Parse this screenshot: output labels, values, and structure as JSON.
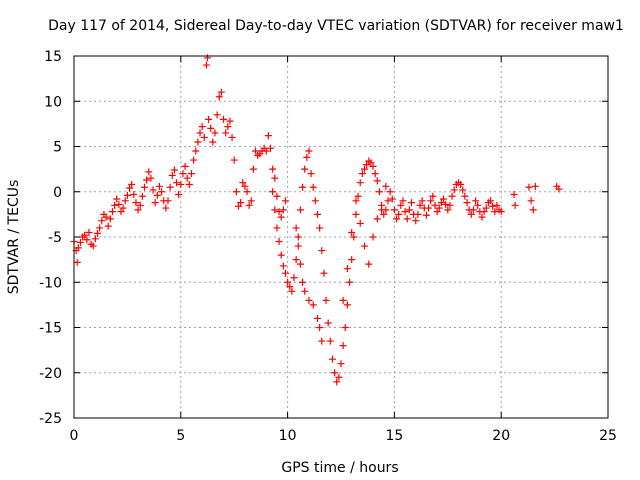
{
  "chart_data": {
    "type": "scatter",
    "title": "Day 117 of 2014, Sidereal Day-to-day VTEC variation (SDTVAR) for receiver maw1",
    "xlabel": "GPS time / hours",
    "ylabel": "SDTVAR / TECUs",
    "xlim": [
      0,
      25
    ],
    "ylim": [
      -25,
      15
    ],
    "xticks": [
      0,
      5,
      10,
      15,
      20,
      25
    ],
    "yticks": [
      -25,
      -20,
      -15,
      -10,
      -5,
      0,
      5,
      10,
      15
    ],
    "grid": true,
    "marker": "+",
    "series": [
      {
        "name": "SDTVAR",
        "color": "#ff0000",
        "points": [
          [
            0.0,
            -5.5
          ],
          [
            0.1,
            -6.5
          ],
          [
            0.15,
            -7.8
          ],
          [
            0.2,
            -6.2
          ],
          [
            0.3,
            -5.6
          ],
          [
            0.4,
            -5.0
          ],
          [
            0.5,
            -4.8
          ],
          [
            0.6,
            -5.3
          ],
          [
            0.7,
            -4.5
          ],
          [
            0.8,
            -5.8
          ],
          [
            0.9,
            -6.0
          ],
          [
            1.0,
            -5.2
          ],
          [
            1.1,
            -4.6
          ],
          [
            1.2,
            -4.0
          ],
          [
            1.3,
            -3.2
          ],
          [
            1.4,
            -2.5
          ],
          [
            1.5,
            -2.8
          ],
          [
            1.6,
            -3.8
          ],
          [
            1.7,
            -3.0
          ],
          [
            1.8,
            -2.2
          ],
          [
            1.9,
            -1.5
          ],
          [
            2.0,
            -0.8
          ],
          [
            2.1,
            -1.4
          ],
          [
            2.2,
            -2.2
          ],
          [
            2.3,
            -1.8
          ],
          [
            2.4,
            -1.0
          ],
          [
            2.5,
            -0.4
          ],
          [
            2.6,
            0.4
          ],
          [
            2.7,
            0.8
          ],
          [
            2.8,
            -0.3
          ],
          [
            2.9,
            -1.2
          ],
          [
            3.0,
            -2.0
          ],
          [
            3.1,
            -1.5
          ],
          [
            3.2,
            -0.5
          ],
          [
            3.3,
            0.5
          ],
          [
            3.4,
            1.3
          ],
          [
            3.5,
            2.2
          ],
          [
            3.6,
            1.5
          ],
          [
            3.7,
            0.2
          ],
          [
            3.8,
            -1.2
          ],
          [
            3.9,
            -0.4
          ],
          [
            4.0,
            0.6
          ],
          [
            4.1,
            0.0
          ],
          [
            4.2,
            -1.0
          ],
          [
            4.3,
            -1.8
          ],
          [
            4.4,
            -1.0
          ],
          [
            4.5,
            0.5
          ],
          [
            4.6,
            1.8
          ],
          [
            4.7,
            2.4
          ],
          [
            4.8,
            1.0
          ],
          [
            4.9,
            -0.3
          ],
          [
            5.0,
            0.8
          ],
          [
            5.1,
            2.0
          ],
          [
            5.2,
            2.8
          ],
          [
            5.3,
            1.5
          ],
          [
            5.4,
            0.8
          ],
          [
            5.5,
            2.0
          ],
          [
            5.6,
            3.5
          ],
          [
            5.7,
            4.5
          ],
          [
            5.8,
            5.5
          ],
          [
            5.9,
            6.5
          ],
          [
            6.0,
            7.2
          ],
          [
            6.1,
            6.0
          ],
          [
            6.2,
            14.0
          ],
          [
            6.25,
            14.8
          ],
          [
            6.3,
            8.0
          ],
          [
            6.4,
            7.0
          ],
          [
            6.5,
            5.5
          ],
          [
            6.6,
            6.5
          ],
          [
            6.7,
            8.5
          ],
          [
            6.8,
            10.5
          ],
          [
            6.9,
            11.0
          ],
          [
            7.0,
            8.0
          ],
          [
            7.1,
            6.5
          ],
          [
            7.2,
            7.2
          ],
          [
            7.3,
            7.8
          ],
          [
            7.4,
            6.0
          ],
          [
            7.5,
            3.5
          ],
          [
            7.6,
            0.0
          ],
          [
            7.7,
            -1.6
          ],
          [
            7.8,
            -1.2
          ],
          [
            7.9,
            1.0
          ],
          [
            8.0,
            0.6
          ],
          [
            8.1,
            0.0
          ],
          [
            8.2,
            -1.5
          ],
          [
            8.3,
            -1.0
          ],
          [
            8.4,
            2.5
          ],
          [
            8.5,
            4.5
          ],
          [
            8.6,
            4.0
          ],
          [
            8.7,
            4.2
          ],
          [
            8.8,
            4.5
          ],
          [
            8.9,
            4.8
          ],
          [
            9.0,
            4.5
          ],
          [
            9.1,
            6.2
          ],
          [
            9.2,
            4.8
          ],
          [
            9.3,
            0.0
          ],
          [
            9.4,
            -2.0
          ],
          [
            9.5,
            -4.0
          ],
          [
            9.6,
            -5.5
          ],
          [
            9.7,
            -7.0
          ],
          [
            9.8,
            -8.2
          ],
          [
            9.9,
            -9.0
          ],
          [
            10.0,
            -10.0
          ],
          [
            10.1,
            -10.5
          ],
          [
            10.2,
            -11.0
          ],
          [
            10.3,
            -9.5
          ],
          [
            10.4,
            -7.5
          ],
          [
            10.5,
            -5.0
          ],
          [
            10.6,
            -2.0
          ],
          [
            10.7,
            0.5
          ],
          [
            10.8,
            2.5
          ],
          [
            10.9,
            3.8
          ],
          [
            11.0,
            4.5
          ],
          [
            11.1,
            2.0
          ],
          [
            11.2,
            0.5
          ],
          [
            11.3,
            -1.0
          ],
          [
            11.4,
            -2.5
          ],
          [
            11.5,
            -4.0
          ],
          [
            11.6,
            -6.5
          ],
          [
            11.7,
            -9.0
          ],
          [
            11.8,
            -12.0
          ],
          [
            11.9,
            -14.5
          ],
          [
            12.0,
            -16.5
          ],
          [
            12.1,
            -18.5
          ],
          [
            12.2,
            -20.0
          ],
          [
            12.3,
            -21.0
          ],
          [
            12.4,
            -20.5
          ],
          [
            12.5,
            -19.0
          ],
          [
            12.6,
            -17.0
          ],
          [
            12.7,
            -15.0
          ],
          [
            12.8,
            -12.5
          ],
          [
            12.9,
            -10.0
          ],
          [
            13.0,
            -7.5
          ],
          [
            13.1,
            -5.0
          ],
          [
            13.2,
            -2.5
          ],
          [
            13.3,
            -0.5
          ],
          [
            13.4,
            1.0
          ],
          [
            13.5,
            2.0
          ],
          [
            13.6,
            2.5
          ],
          [
            13.7,
            3.0
          ],
          [
            13.8,
            3.4
          ],
          [
            13.9,
            3.2
          ],
          [
            14.0,
            2.8
          ],
          [
            14.1,
            2.0
          ],
          [
            14.2,
            1.2
          ],
          [
            14.3,
            0.0
          ],
          [
            14.4,
            -1.5
          ],
          [
            14.5,
            -2.5
          ],
          [
            14.6,
            -2.0
          ],
          [
            14.7,
            -1.0
          ],
          [
            14.8,
            0.0
          ],
          [
            14.9,
            -0.8
          ],
          [
            15.0,
            -2.0
          ],
          [
            15.1,
            -3.0
          ],
          [
            15.2,
            -2.5
          ],
          [
            15.3,
            -1.5
          ],
          [
            15.4,
            -1.0
          ],
          [
            15.5,
            -2.2
          ],
          [
            15.6,
            -3.0
          ],
          [
            15.7,
            -2.0
          ],
          [
            15.8,
            -1.2
          ],
          [
            15.9,
            -2.5
          ],
          [
            16.0,
            -3.2
          ],
          [
            16.1,
            -2.5
          ],
          [
            16.2,
            -1.5
          ],
          [
            16.3,
            -1.0
          ],
          [
            16.4,
            -1.8
          ],
          [
            16.5,
            -2.6
          ],
          [
            16.6,
            -1.8
          ],
          [
            16.7,
            -1.0
          ],
          [
            16.8,
            -0.5
          ],
          [
            16.9,
            -1.5
          ],
          [
            17.0,
            -2.2
          ],
          [
            17.1,
            -1.8
          ],
          [
            17.2,
            -1.2
          ],
          [
            17.3,
            -0.8
          ],
          [
            17.4,
            -1.4
          ],
          [
            17.5,
            -2.0
          ],
          [
            17.6,
            -1.5
          ],
          [
            17.7,
            -0.5
          ],
          [
            17.8,
            0.2
          ],
          [
            17.9,
            0.8
          ],
          [
            18.0,
            1.0
          ],
          [
            18.1,
            0.8
          ],
          [
            18.2,
            0.2
          ],
          [
            18.3,
            -0.5
          ],
          [
            18.4,
            -1.2
          ],
          [
            18.5,
            -2.0
          ],
          [
            18.6,
            -2.5
          ],
          [
            18.7,
            -2.0
          ],
          [
            18.8,
            -1.0
          ],
          [
            18.9,
            -1.5
          ],
          [
            19.0,
            -2.2
          ],
          [
            19.1,
            -2.8
          ],
          [
            19.2,
            -2.2
          ],
          [
            19.3,
            -1.8
          ],
          [
            19.4,
            -1.2
          ],
          [
            19.5,
            -1.0
          ],
          [
            19.6,
            -1.6
          ],
          [
            19.7,
            -2.2
          ],
          [
            19.8,
            -1.5
          ],
          [
            19.9,
            -2.0
          ],
          [
            20.0,
            -2.2
          ],
          [
            20.6,
            -0.3
          ],
          [
            20.65,
            -1.5
          ],
          [
            21.3,
            0.5
          ],
          [
            21.4,
            -1.0
          ],
          [
            21.5,
            -2.0
          ],
          [
            21.6,
            0.6
          ],
          [
            22.6,
            0.6
          ],
          [
            22.7,
            0.3
          ],
          [
            9.3,
            2.5
          ],
          [
            9.4,
            1.5
          ],
          [
            9.5,
            -0.5
          ],
          [
            9.6,
            -2.2
          ],
          [
            9.7,
            -2.8
          ],
          [
            9.8,
            -2.0
          ],
          [
            9.9,
            -1.0
          ],
          [
            10.4,
            -4.0
          ],
          [
            10.5,
            -6.0
          ],
          [
            10.6,
            -8.0
          ],
          [
            10.7,
            -10.0
          ],
          [
            10.8,
            -11.0
          ],
          [
            11.0,
            -12.0
          ],
          [
            11.2,
            -12.5
          ],
          [
            11.4,
            -14.0
          ],
          [
            11.5,
            -15.0
          ],
          [
            11.6,
            -16.5
          ],
          [
            12.6,
            -12.0
          ],
          [
            12.8,
            -8.5
          ],
          [
            13.0,
            -4.5
          ],
          [
            13.2,
            -1.0
          ],
          [
            13.4,
            -3.5
          ],
          [
            13.6,
            -6.0
          ],
          [
            13.8,
            -8.0
          ],
          [
            14.0,
            -5.0
          ],
          [
            14.2,
            -3.0
          ],
          [
            14.4,
            -2.0
          ],
          [
            14.6,
            0.6
          ]
        ]
      }
    ]
  }
}
